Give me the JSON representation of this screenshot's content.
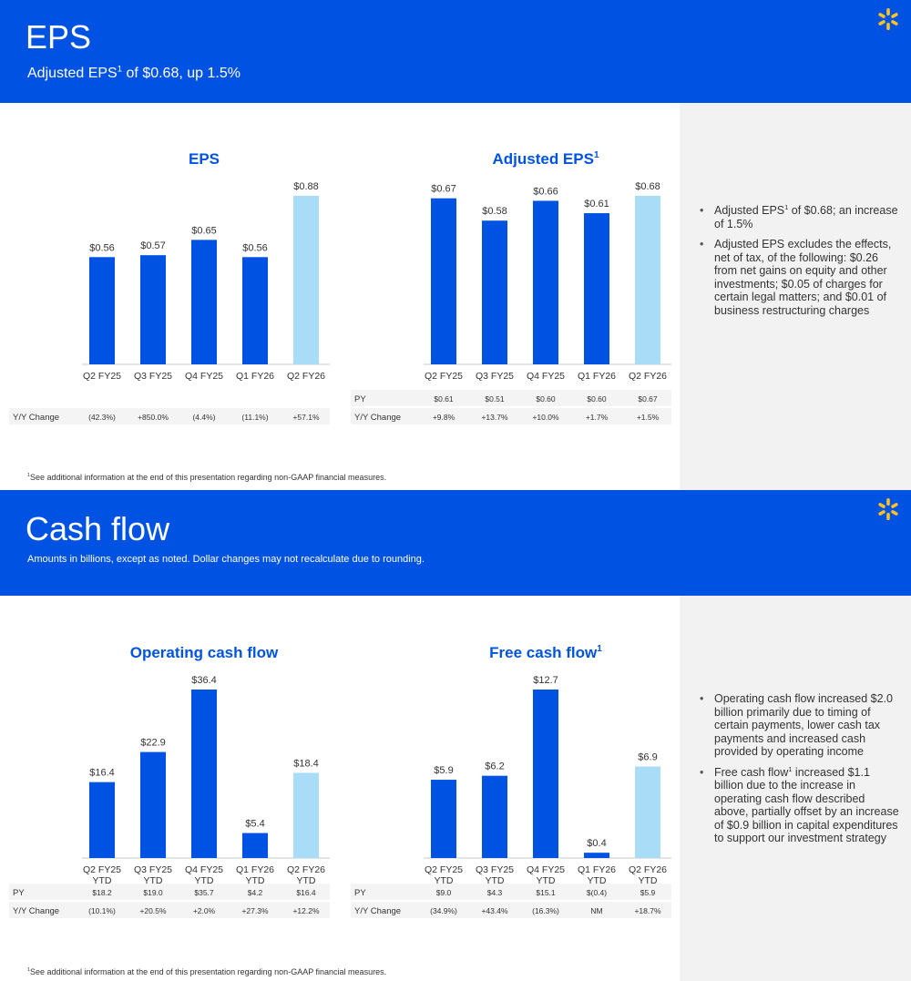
{
  "colors": {
    "brand_blue": "#0053e2",
    "bar_dark": "#0053e2",
    "bar_light": "#a9ddf7",
    "spark_yellow": "#ffc220",
    "sidebar_gray": "#f2f2f2"
  },
  "eps_slide": {
    "title": "EPS",
    "subtitle_pre": "Adjusted EPS",
    "subtitle_sup": "1",
    "subtitle_post": " of $0.68, up 1.5%",
    "bullet1_pre": "Adjusted EPS",
    "bullet1_sup": "1",
    "bullet1_post": " of $0.68; an increase of 1.5%",
    "bullet2": "Adjusted EPS excludes the effects, net of tax, of the following: $0.26 from net gains on equity and other investments; $0.05 of charges for certain legal matters; and  $0.01 of business restructuring charges",
    "footnote_sup": "1",
    "footnote": "See additional information at the end of this presentation regarding non-GAAP financial measures."
  },
  "cashflow_slide": {
    "title": "Cash flow",
    "subtitle": "Amounts in billions, except as noted.  Dollar changes may not recalculate due to rounding.",
    "bullet1": "Operating cash flow increased $2.0 billion primarily due to timing of certain payments, lower cash tax payments and increased cash provided by operating income",
    "bullet2_pre": "Free cash flow",
    "bullet2_sup": "1",
    "bullet2_post": " increased $1.1 billion due to the increase in operating cash flow described above, partially offset by an increase of $0.9 billion in capital expenditures to support our investment strategy",
    "footnote_sup": "1",
    "footnote": "See additional information at the end of this presentation regarding non-GAAP financial measures."
  },
  "chart_data": [
    {
      "type": "bar",
      "title": "EPS",
      "categories": [
        "Q2 FY25",
        "Q3 FY25",
        "Q4 FY25",
        "Q1 FY26",
        "Q2 FY26"
      ],
      "values": [
        0.56,
        0.57,
        0.65,
        0.56,
        0.88
      ],
      "value_labels": [
        "$0.56",
        "$0.57",
        "$0.65",
        "$0.56",
        "$0.88"
      ],
      "highlight_last": true,
      "ylim": [
        0,
        0.88
      ],
      "table": [
        {
          "label": "Y/Y Change",
          "values": [
            "(42.3%)",
            "+850.0%",
            "(4.4%)",
            "(11.1%)",
            "+57.1%"
          ]
        }
      ]
    },
    {
      "type": "bar",
      "title": "Adjusted EPS",
      "title_sup": "1",
      "categories": [
        "Q2 FY25",
        "Q3 FY25",
        "Q4 FY25",
        "Q1 FY26",
        "Q2 FY26"
      ],
      "values": [
        0.67,
        0.58,
        0.66,
        0.61,
        0.68
      ],
      "value_labels": [
        "$0.67",
        "$0.58",
        "$0.66",
        "$0.61",
        "$0.68"
      ],
      "highlight_last": true,
      "ylim": [
        0,
        0.68
      ],
      "table": [
        {
          "label": "PY",
          "values": [
            "$0.61",
            "$0.51",
            "$0.60",
            "$0.60",
            "$0.67"
          ]
        },
        {
          "label": "Y/Y Change",
          "values": [
            "+9.8%",
            "+13.7%",
            "+10.0%",
            "+1.7%",
            "+1.5%"
          ]
        }
      ]
    },
    {
      "type": "bar",
      "title": "Operating cash flow",
      "categories": [
        "Q2 FY25 YTD",
        "Q3 FY25 YTD",
        "Q4 FY25 YTD",
        "Q1 FY26 YTD",
        "Q2 FY26 YTD"
      ],
      "values": [
        16.4,
        22.9,
        36.4,
        5.4,
        18.4
      ],
      "value_labels": [
        "$16.4",
        "$22.9",
        "$36.4",
        "$5.4",
        "$18.4"
      ],
      "highlight_last": true,
      "ylim": [
        0,
        36.4
      ],
      "table": [
        {
          "label": "PY",
          "values": [
            "$18.2",
            "$19.0",
            "$35.7",
            "$4.2",
            "$16.4"
          ]
        },
        {
          "label": "Y/Y Change",
          "values": [
            "(10.1%)",
            "+20.5%",
            "+2.0%",
            "+27.3%",
            "+12.2%"
          ]
        }
      ]
    },
    {
      "type": "bar",
      "title": "Free cash flow",
      "title_sup": "1",
      "categories": [
        "Q2 FY25 YTD",
        "Q3 FY25 YTD",
        "Q4 FY25 YTD",
        "Q1 FY26 YTD",
        "Q2 FY26 YTD"
      ],
      "values": [
        5.9,
        6.2,
        12.7,
        0.4,
        6.9
      ],
      "value_labels": [
        "$5.9",
        "$6.2",
        "$12.7",
        "$0.4",
        "$6.9"
      ],
      "highlight_last": true,
      "ylim": [
        0,
        12.7
      ],
      "table": [
        {
          "label": "PY",
          "values": [
            "$9.0",
            "$4.3",
            "$15.1",
            "$(0.4)",
            "$5.9"
          ]
        },
        {
          "label": "Y/Y Change",
          "values": [
            "(34.9%)",
            "+43.4%",
            "(16.3%)",
            "NM",
            "+18.7%"
          ]
        }
      ]
    }
  ]
}
